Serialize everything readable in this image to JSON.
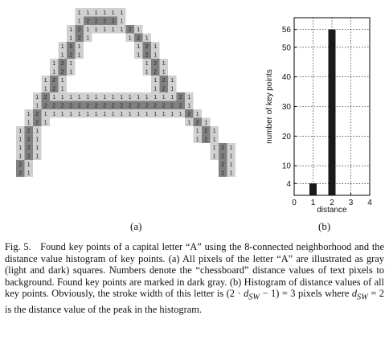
{
  "panel_a": {
    "label": "(a)",
    "light_color": "#d0d0d0",
    "dark_color": "#808080",
    "rows": [
      "       111111",
      "       122221",
      "      121111121",
      "      121    121",
      "     121      121",
      "     121      121",
      "    121        121",
      "    121        121",
      "   121          121",
      "   121          121",
      "  1211111111111111121",
      "  1222222222222222221",
      " 121111111111111111121",
      " 121                121",
      "121                  121",
      "121                  121",
      "121                    121",
      "121                    121",
      "21                      21",
      "21                      21"
    ]
  },
  "chart_data": {
    "type": "bar",
    "x": [
      1,
      2
    ],
    "values": [
      4,
      56
    ],
    "xlabel": "distance",
    "ylabel": "number of key points",
    "xlim": [
      0,
      4
    ],
    "ylim": [
      0,
      60
    ],
    "xticks": [
      "0",
      "1",
      "2",
      "3",
      "4"
    ],
    "yticks": [
      "4",
      "10",
      "20",
      "30",
      "40",
      "50",
      "56"
    ],
    "ytick_values": [
      4,
      10,
      20,
      30,
      40,
      50,
      56
    ],
    "grid": true,
    "bar_color": "#1a1a1a",
    "label": "(b)"
  },
  "caption": {
    "fig_label": "Fig. 5.",
    "text_1": "Found key points of a capital letter “A” using the 8-connected neighborhood and the distance value histogram of key points. (a) All pixels of the letter “A” are illustrated as gray (light and dark) squares. Numbers denote the “chessboard” distance values of text pixels to background. Found key points are marked in dark gray. (b) Histogram of distance values of all key points. Obviously, the stroke width of this letter is (2 · ",
    "d_symbol": "d",
    "d_sub": "SW",
    "text_2": " − 1) = 3 pixels where ",
    "text_3": " = 2 is the distance value of the peak in the histogram."
  }
}
